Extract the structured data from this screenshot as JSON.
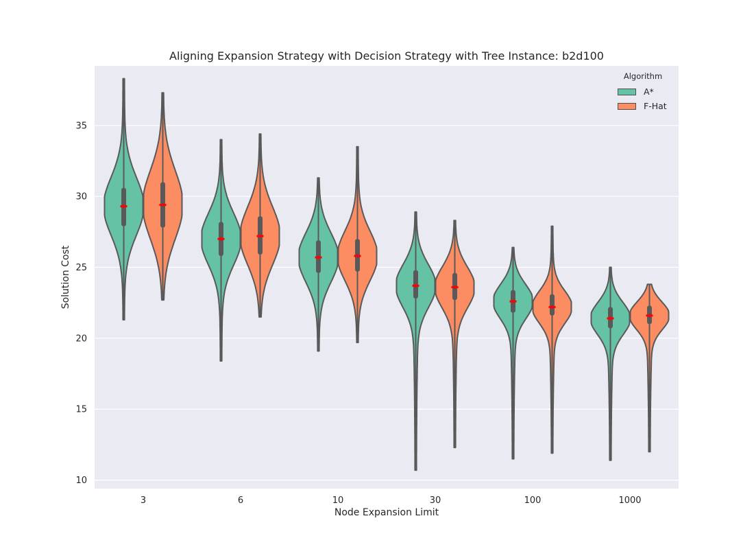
{
  "chart_data": {
    "type": "violin",
    "title": "Aligning Expansion Strategy with Decision Strategy with Tree Instance: b2d100",
    "xlabel": "Node Expansion Limit",
    "ylabel": "Solution Cost",
    "categories": [
      "3",
      "6",
      "10",
      "30",
      "100",
      "1000"
    ],
    "yticks": [
      "10",
      "15",
      "20",
      "25",
      "30",
      "35"
    ],
    "ylim": [
      9.4,
      39.2
    ],
    "grid": true,
    "legend": {
      "title": "Algorithm",
      "placement": "top-right"
    },
    "mean_marker_color": "#ff0000",
    "series": [
      {
        "name": "A*",
        "color": "#66c2a5",
        "stats": [
          {
            "min": 21.3,
            "q1": 27.9,
            "median": 29.3,
            "q3": 30.6,
            "max": 38.3,
            "mean": 29.3
          },
          {
            "min": 18.4,
            "q1": 25.8,
            "median": 27.0,
            "q3": 28.2,
            "max": 34.0,
            "mean": 27.0
          },
          {
            "min": 19.1,
            "q1": 24.6,
            "median": 25.7,
            "q3": 26.9,
            "max": 31.3,
            "mean": 25.7
          },
          {
            "min": 10.7,
            "q1": 22.8,
            "median": 23.7,
            "q3": 24.8,
            "max": 28.9,
            "mean": 23.7
          },
          {
            "min": 11.5,
            "q1": 21.8,
            "median": 22.6,
            "q3": 23.4,
            "max": 26.4,
            "mean": 22.6
          },
          {
            "min": 11.4,
            "q1": 20.7,
            "median": 21.4,
            "q3": 22.2,
            "max": 25.0,
            "mean": 21.4
          }
        ]
      },
      {
        "name": "F-Hat",
        "color": "#fc8d62",
        "stats": [
          {
            "min": 22.7,
            "q1": 27.8,
            "median": 29.4,
            "q3": 31.0,
            "max": 37.3,
            "mean": 29.4
          },
          {
            "min": 21.5,
            "q1": 25.9,
            "median": 27.2,
            "q3": 28.6,
            "max": 34.4,
            "mean": 27.2
          },
          {
            "min": 19.7,
            "q1": 24.7,
            "median": 25.8,
            "q3": 27.0,
            "max": 33.5,
            "mean": 25.8
          },
          {
            "min": 12.3,
            "q1": 22.7,
            "median": 23.6,
            "q3": 24.6,
            "max": 28.3,
            "mean": 23.6
          },
          {
            "min": 11.9,
            "q1": 21.6,
            "median": 22.2,
            "q3": 23.1,
            "max": 27.9,
            "mean": 22.2
          },
          {
            "min": 12.0,
            "q1": 21.0,
            "median": 21.6,
            "q3": 22.3,
            "max": 23.8,
            "mean": 21.6
          }
        ]
      }
    ]
  }
}
